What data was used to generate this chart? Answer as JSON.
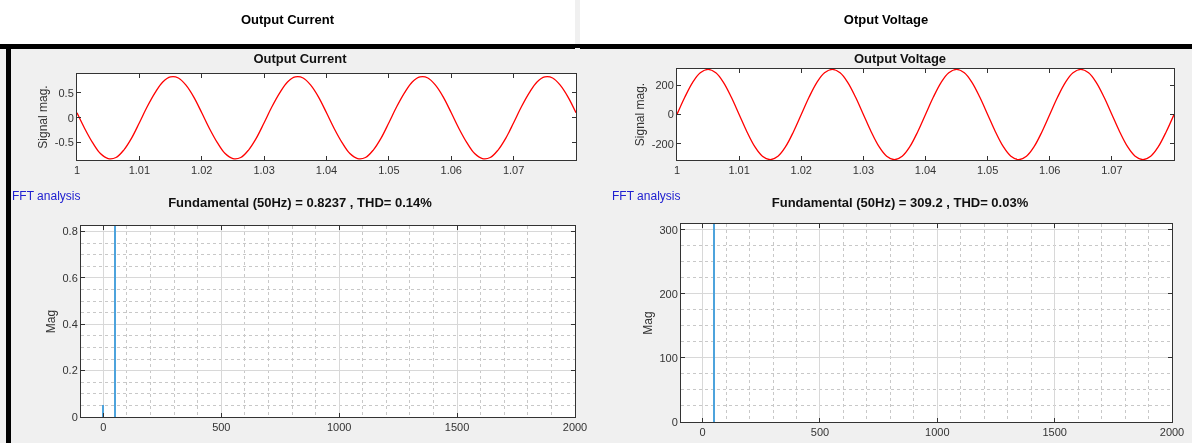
{
  "chart_data": [
    {
      "type": "other",
      "title": "Output Current"
    },
    {
      "type": "other",
      "title": "Otput Voltage"
    },
    {
      "type": "line",
      "title": "Output Current",
      "ylabel": "Signal mag.",
      "grid": false,
      "marker": "none",
      "line_style": "solid",
      "x": [
        1,
        1.00125,
        1.0025,
        1.00375,
        1.005,
        1.00625,
        1.0075,
        1.00875,
        1.01,
        1.01125,
        1.0125,
        1.01375,
        1.015,
        1.01625,
        1.0175,
        1.01875,
        1.02,
        1.02125,
        1.0225,
        1.02375,
        1.025,
        1.02625,
        1.0275,
        1.02875,
        1.03,
        1.03125,
        1.0325,
        1.03375,
        1.035,
        1.03625,
        1.0375,
        1.03875,
        1.04,
        1.04125,
        1.0425,
        1.04375,
        1.045,
        1.04625,
        1.0475,
        1.04875,
        1.05,
        1.05125,
        1.0525,
        1.05375,
        1.055,
        1.05625,
        1.0575,
        1.05875,
        1.06,
        1.06125,
        1.0625,
        1.06375,
        1.065,
        1.06625,
        1.0675,
        1.06875,
        1.07,
        1.07125,
        1.0725,
        1.07375,
        1.075,
        1.07625,
        1.0775,
        1.07875,
        1.08
      ],
      "series": [
        {
          "color": "#ff0000",
          "values": [
            0.1,
            -0.22,
            -0.5,
            -0.72,
            -0.82,
            -0.8,
            -0.65,
            -0.41,
            -0.1,
            0.22,
            0.5,
            0.72,
            0.82,
            0.8,
            0.65,
            0.41,
            0.1,
            -0.22,
            -0.5,
            -0.72,
            -0.82,
            -0.8,
            -0.65,
            -0.41,
            -0.1,
            0.22,
            0.5,
            0.72,
            0.82,
            0.8,
            0.65,
            0.41,
            0.1,
            -0.22,
            -0.5,
            -0.72,
            -0.82,
            -0.8,
            -0.65,
            -0.41,
            -0.1,
            0.22,
            0.5,
            0.72,
            0.82,
            0.8,
            0.65,
            0.41,
            0.1,
            -0.22,
            -0.5,
            -0.72,
            -0.82,
            -0.8,
            -0.65,
            -0.41,
            -0.1,
            0.22,
            0.5,
            0.72,
            0.82,
            0.8,
            0.65,
            0.41,
            0.1
          ]
        }
      ],
      "xlim": [
        1,
        1.08
      ],
      "xticks": [
        1,
        1.01,
        1.02,
        1.03,
        1.04,
        1.05,
        1.06,
        1.07
      ],
      "ylim": [
        -0.85,
        0.88
      ],
      "yticks": [
        -0.5,
        0,
        0.5
      ]
    },
    {
      "type": "line",
      "title": "Output Voltage",
      "ylabel": "Signal mag.",
      "grid": false,
      "marker": "none",
      "line_style": "solid",
      "x": [
        1,
        1.00125,
        1.0025,
        1.00375,
        1.005,
        1.00625,
        1.0075,
        1.00875,
        1.01,
        1.01125,
        1.0125,
        1.01375,
        1.015,
        1.01625,
        1.0175,
        1.01875,
        1.02,
        1.02125,
        1.0225,
        1.02375,
        1.025,
        1.02625,
        1.0275,
        1.02875,
        1.03,
        1.03125,
        1.0325,
        1.03375,
        1.035,
        1.03625,
        1.0375,
        1.03875,
        1.04,
        1.04125,
        1.0425,
        1.04375,
        1.045,
        1.04625,
        1.0475,
        1.04875,
        1.05,
        1.05125,
        1.0525,
        1.05375,
        1.055,
        1.05625,
        1.0575,
        1.05875,
        1.06,
        1.06125,
        1.0625,
        1.06375,
        1.065,
        1.06625,
        1.0675,
        1.06875,
        1.07,
        1.07125,
        1.0725,
        1.07375,
        1.075,
        1.07625,
        1.0775,
        1.07875,
        1.08
      ],
      "series": [
        {
          "color": "#ff0000",
          "values": [
            0,
            118,
            219,
            286,
            309,
            286,
            219,
            118,
            0,
            -118,
            -219,
            -286,
            -309,
            -286,
            -219,
            -118,
            0,
            118,
            219,
            286,
            309,
            286,
            219,
            118,
            0,
            -118,
            -219,
            -286,
            -309,
            -286,
            -219,
            -118,
            0,
            118,
            219,
            286,
            309,
            286,
            219,
            118,
            0,
            -118,
            -219,
            -286,
            -309,
            -286,
            -219,
            -118,
            0,
            118,
            219,
            286,
            309,
            286,
            219,
            118,
            0,
            -118,
            -219,
            -286,
            -309,
            -286,
            -219,
            -118,
            0
          ]
        }
      ],
      "xlim": [
        1,
        1.08
      ],
      "xticks": [
        1,
        1.01,
        1.02,
        1.03,
        1.04,
        1.05,
        1.06,
        1.07
      ],
      "ylim": [
        -312,
        312
      ],
      "yticks": [
        -200,
        0,
        200
      ]
    },
    {
      "type": "bar",
      "title": "Fundamental (50Hz) = 0.8237 , THD= 0.14%",
      "ylabel": "Mag",
      "grid": true,
      "annotations": [
        "FFT analysis"
      ],
      "x": [
        0,
        50
      ],
      "series": [
        {
          "color": "#4da3dc",
          "values": [
            0.05,
            0.8237
          ]
        }
      ],
      "xlim": [
        -95,
        2000
      ],
      "xticks": [
        0,
        500,
        1000,
        1500,
        2000
      ],
      "ylim": [
        0,
        0.8237
      ],
      "yticks": [
        0,
        0.2,
        0.4,
        0.6,
        0.8
      ]
    },
    {
      "type": "bar",
      "title": "Fundamental (50Hz) = 309.2 , THD= 0.03%",
      "ylabel": "Mag",
      "grid": true,
      "annotations": [
        "FFT analysis"
      ],
      "x": [
        0,
        50
      ],
      "series": [
        {
          "color": "#4da3dc",
          "values": [
            0,
            309.2
          ]
        }
      ],
      "xlim": [
        -92,
        2000
      ],
      "xticks": [
        0,
        500,
        1000,
        1500,
        2000
      ],
      "ylim": [
        0,
        309.2
      ],
      "yticks": [
        0,
        100,
        200,
        300
      ]
    }
  ]
}
